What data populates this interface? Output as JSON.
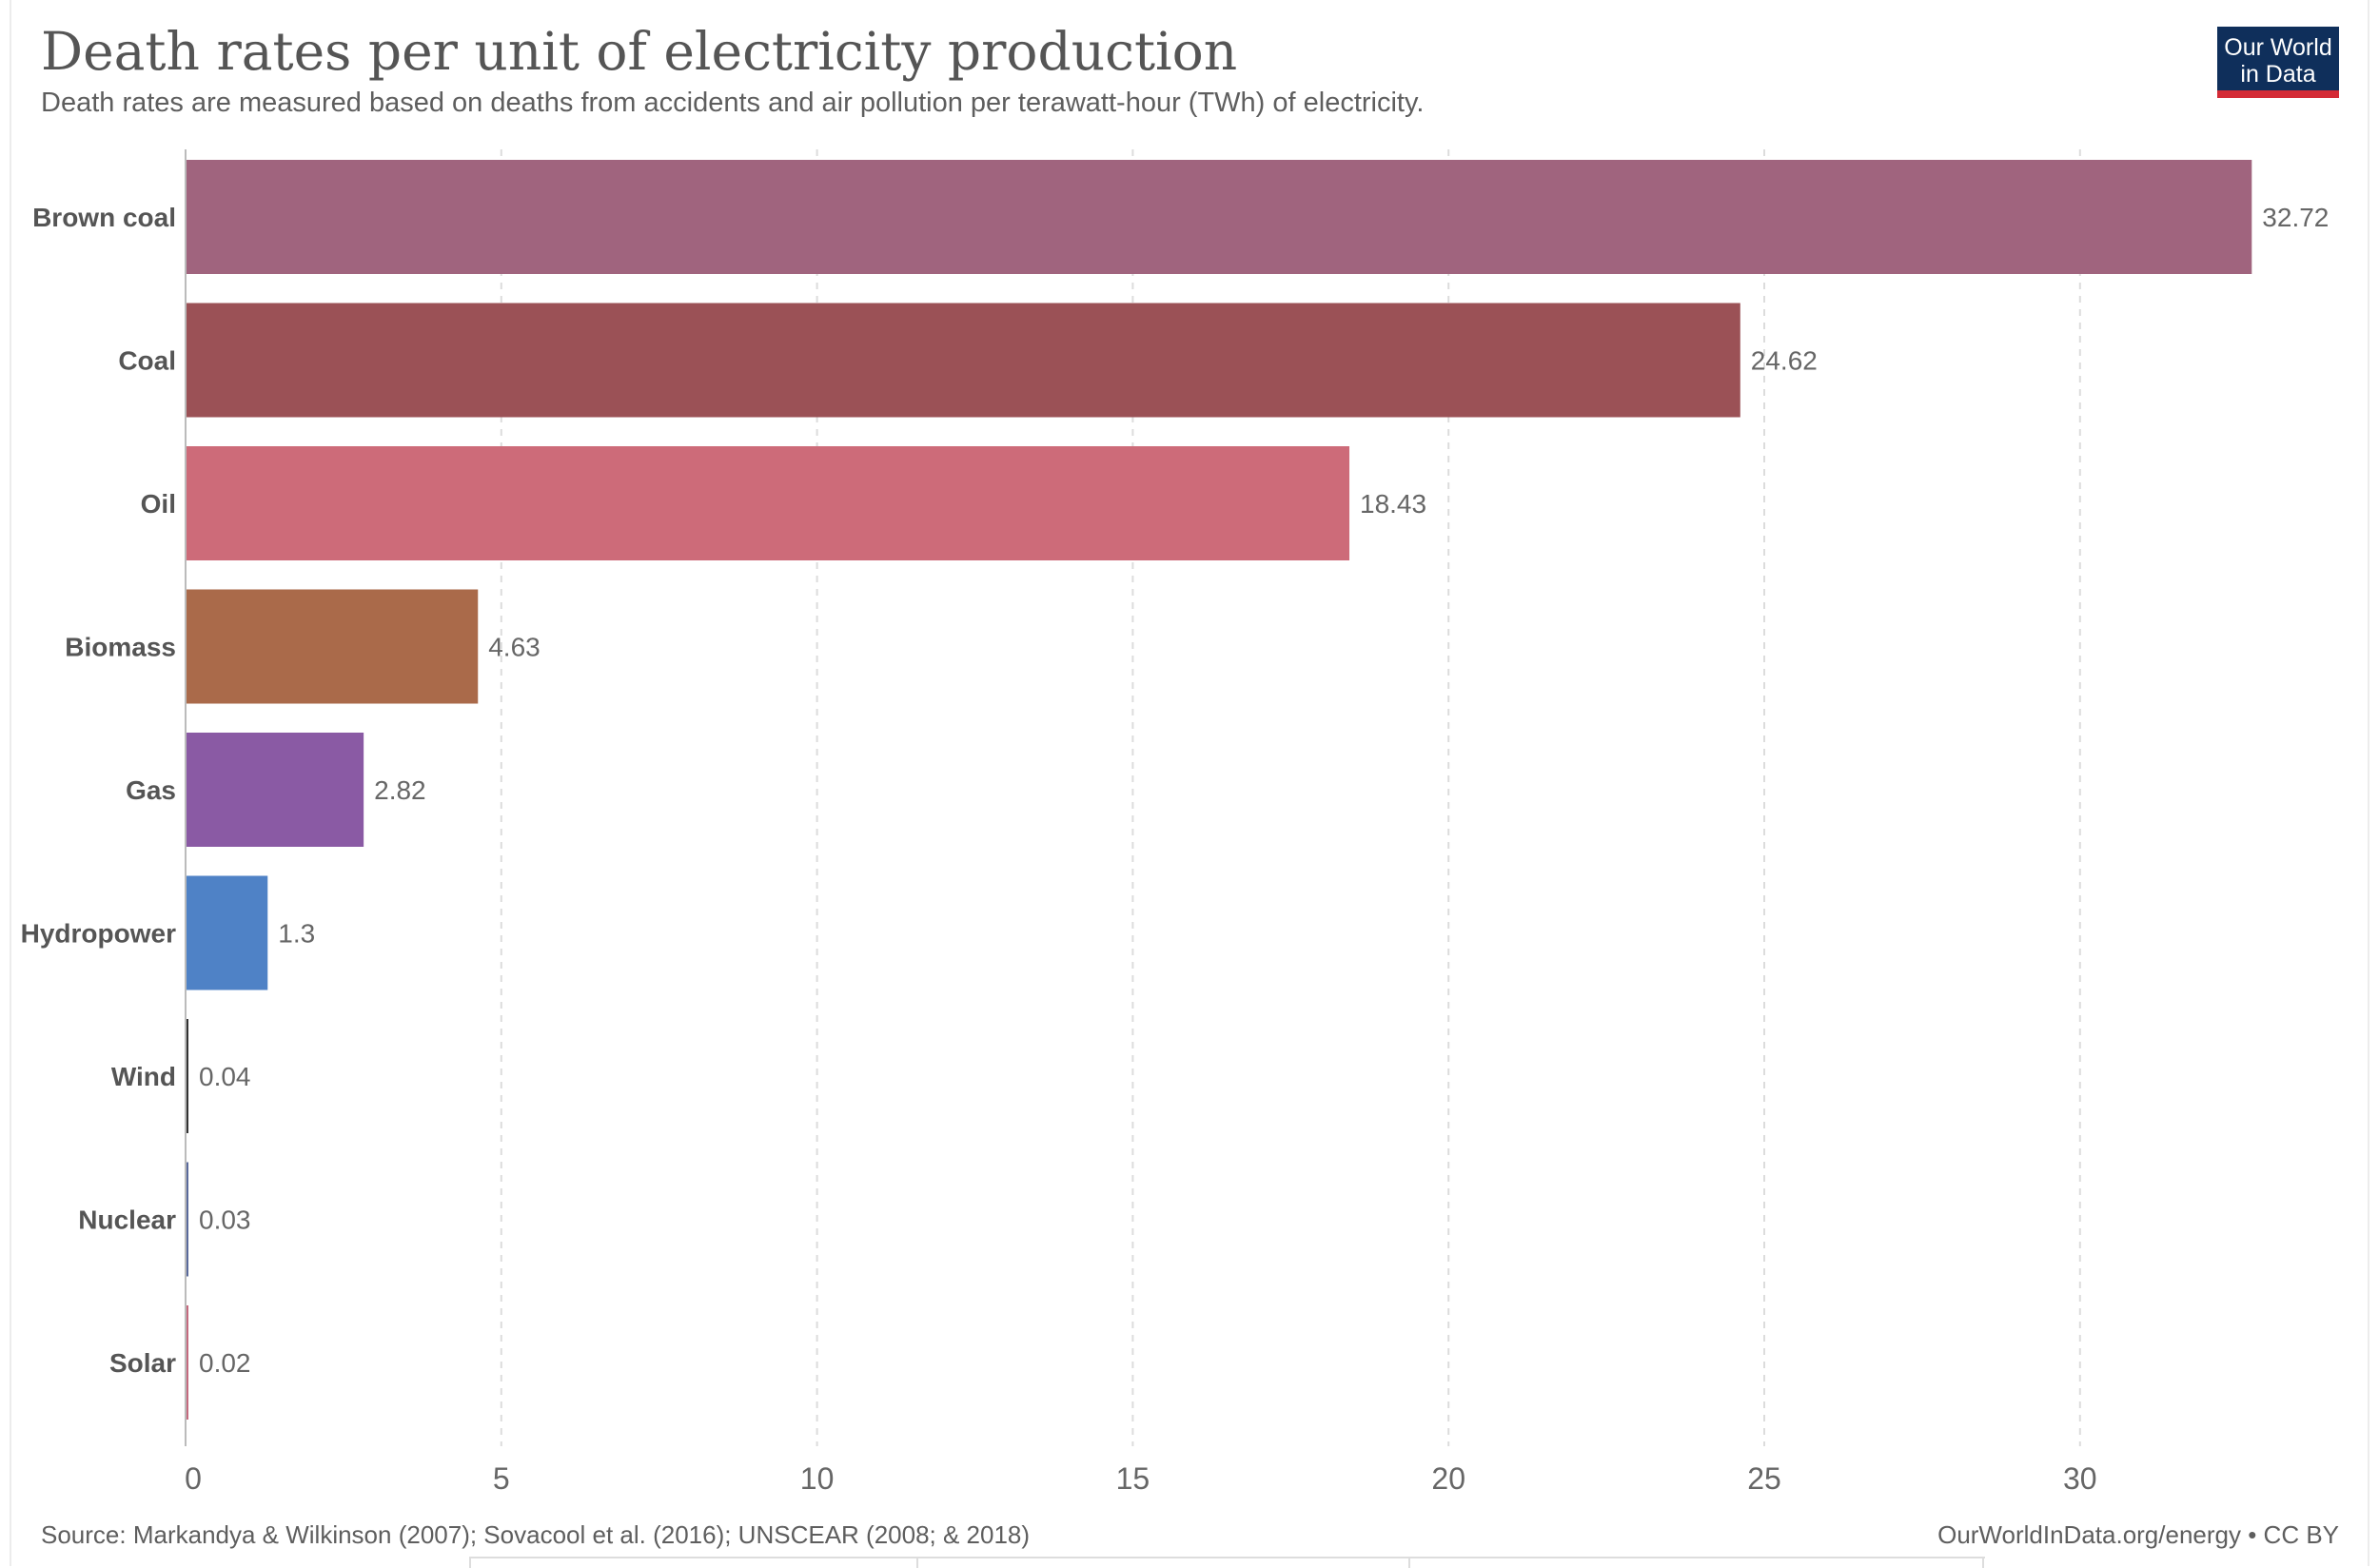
{
  "header": {
    "title": "Death rates per unit of electricity production",
    "subtitle": "Death rates are measured based on deaths from accidents and air pollution per terawatt-hour (TWh) of electricity."
  },
  "logo": {
    "line1": "Our World",
    "line2": "in Data",
    "background": "#0f2f5b",
    "accent": "#d42b36"
  },
  "footer": {
    "source": "Source: Markandya & Wilkinson (2007); Sovacool et al. (2016); UNSCEAR (2008; & 2018)",
    "credit": "OurWorldInData.org/energy • CC BY"
  },
  "chart_data": {
    "type": "bar",
    "orientation": "horizontal",
    "categories": [
      "Brown coal",
      "Coal",
      "Oil",
      "Biomass",
      "Gas",
      "Hydropower",
      "Wind",
      "Nuclear",
      "Solar"
    ],
    "values": [
      32.72,
      24.62,
      18.43,
      4.63,
      2.82,
      1.3,
      0.04,
      0.03,
      0.02
    ],
    "value_labels": [
      "32.72",
      "24.62",
      "18.43",
      "4.63",
      "2.82",
      "1.3",
      "0.04",
      "0.03",
      "0.02"
    ],
    "colors": [
      "#a0647e",
      "#9b5156",
      "#cd6b79",
      "#aa6a4a",
      "#8a5aa4",
      "#4f82c6",
      "#333333",
      "#5a6a9c",
      "#c56a7f"
    ],
    "x_ticks": [
      "0",
      "5",
      "10",
      "15",
      "20",
      "25",
      "30"
    ],
    "x_tick_values": [
      0,
      5,
      10,
      15,
      20,
      25,
      30
    ],
    "xlim": [
      0,
      33.5
    ],
    "grid": "vertical dashed",
    "legend": "none"
  }
}
